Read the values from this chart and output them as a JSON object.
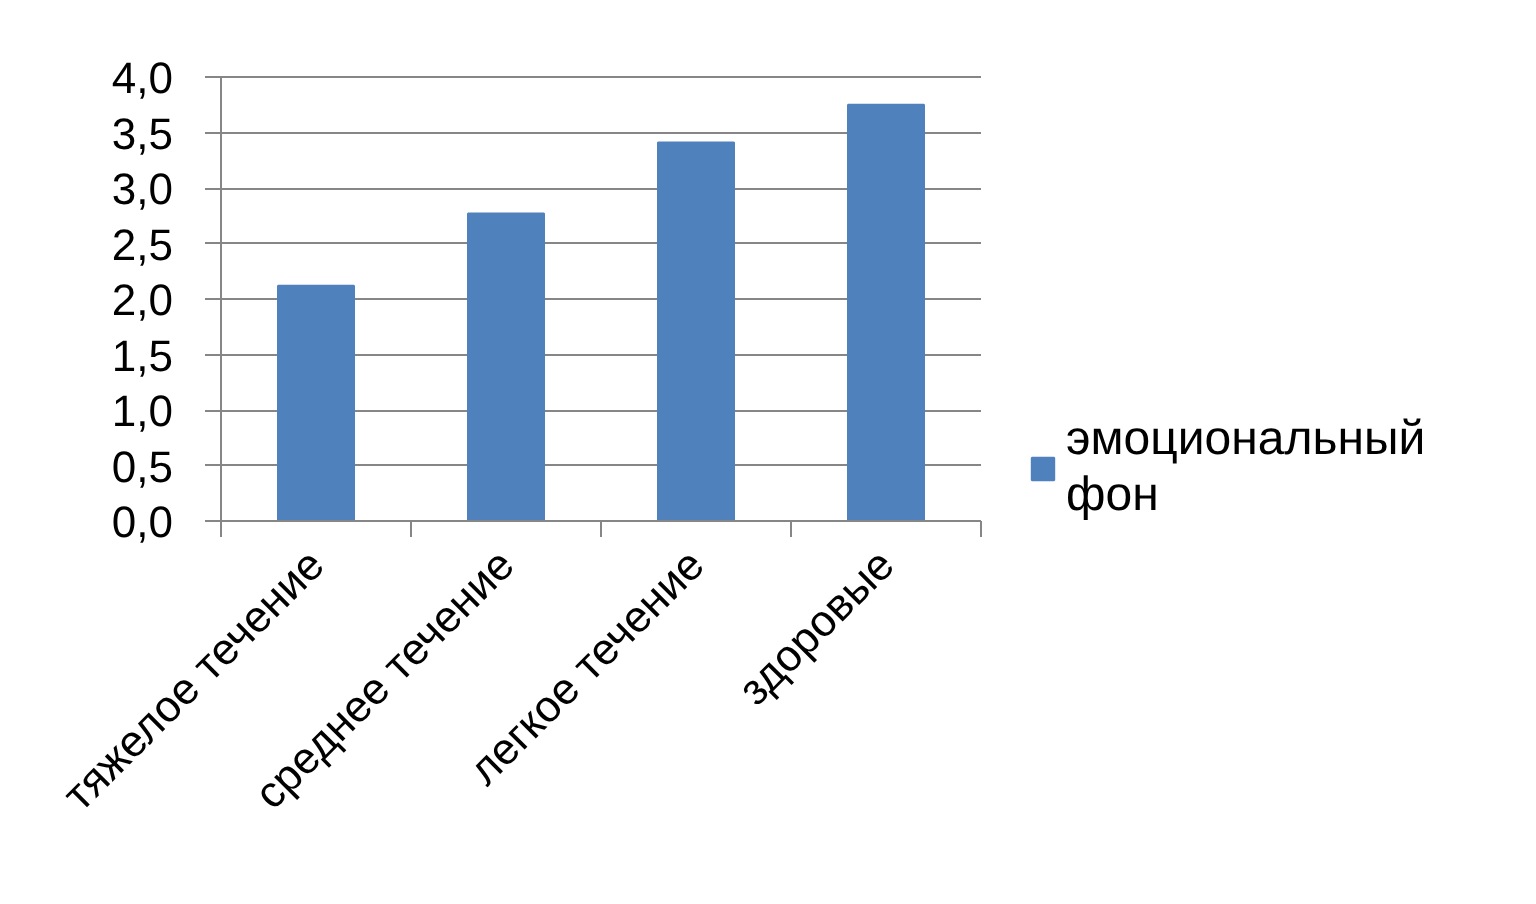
{
  "chart_data": {
    "type": "bar",
    "categories": [
      "тяжелое течение",
      "среднее течение",
      "легкое течение",
      "здоровые"
    ],
    "series": [
      {
        "name": "эмоциональный фон",
        "color": "#4f81bd",
        "values": [
          2.12,
          2.77,
          3.41,
          3.75
        ]
      }
    ],
    "ylim": [
      0,
      4
    ],
    "yticks": [
      {
        "value": 0,
        "label": "0,0"
      },
      {
        "value": 0.5,
        "label": "0,5"
      },
      {
        "value": 1,
        "label": "1,0"
      },
      {
        "value": 1.5,
        "label": "1,5"
      },
      {
        "value": 2,
        "label": "2,0"
      },
      {
        "value": 2.5,
        "label": "2,5"
      },
      {
        "value": 3,
        "label": "3,0"
      },
      {
        "value": 3.5,
        "label": "3,5"
      },
      {
        "value": 4,
        "label": "4,0"
      }
    ],
    "grid": "y",
    "legend": "right"
  }
}
